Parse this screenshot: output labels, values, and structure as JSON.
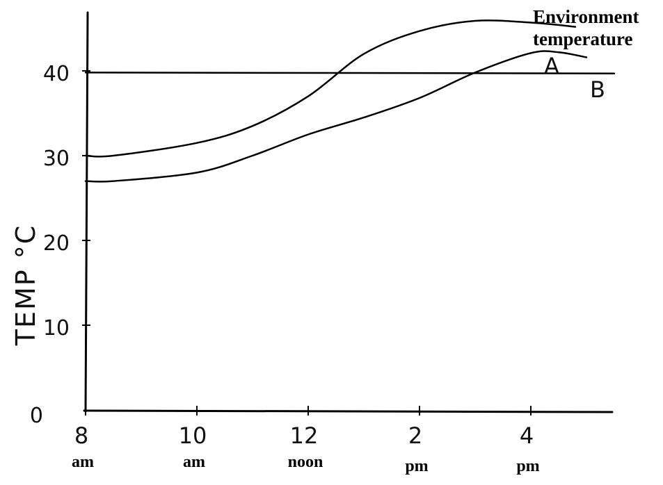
{
  "chart_data": {
    "type": "line",
    "ylabel": "TEMP °C",
    "yticks": [
      "0",
      "10",
      "20",
      "30",
      "40"
    ],
    "ylim": [
      0,
      49
    ],
    "xlim": [
      8,
      17.5
    ],
    "xticks": [
      {
        "x": 8,
        "value": "8",
        "period": "am"
      },
      {
        "x": 10,
        "value": "10",
        "period": "am"
      },
      {
        "x": 12,
        "value": "12",
        "period": "noon"
      },
      {
        "x": 14,
        "value": "2",
        "period": "pm"
      },
      {
        "x": 16,
        "value": "4",
        "period": "pm"
      }
    ],
    "annotation": {
      "line1": "Environment",
      "line2": "temperature"
    },
    "series": [
      {
        "name": "Environment temperature",
        "x": [
          8,
          8.5,
          10,
          11,
          12,
          13,
          14,
          15,
          16,
          16.8
        ],
        "y": [
          30,
          30,
          31.5,
          33.5,
          37,
          42,
          44.7,
          45.9,
          45.7,
          45.2
        ]
      },
      {
        "name": "A",
        "x": [
          8,
          8.5,
          10,
          11,
          12,
          13,
          14,
          15,
          16,
          16.5,
          17
        ],
        "y": [
          27,
          27,
          28,
          30,
          32.5,
          34.5,
          36.8,
          39.8,
          42.1,
          42.2,
          41.6
        ]
      },
      {
        "name": "B",
        "x": [
          8,
          17.5
        ],
        "y": [
          39.8,
          39.7
        ]
      }
    ]
  }
}
